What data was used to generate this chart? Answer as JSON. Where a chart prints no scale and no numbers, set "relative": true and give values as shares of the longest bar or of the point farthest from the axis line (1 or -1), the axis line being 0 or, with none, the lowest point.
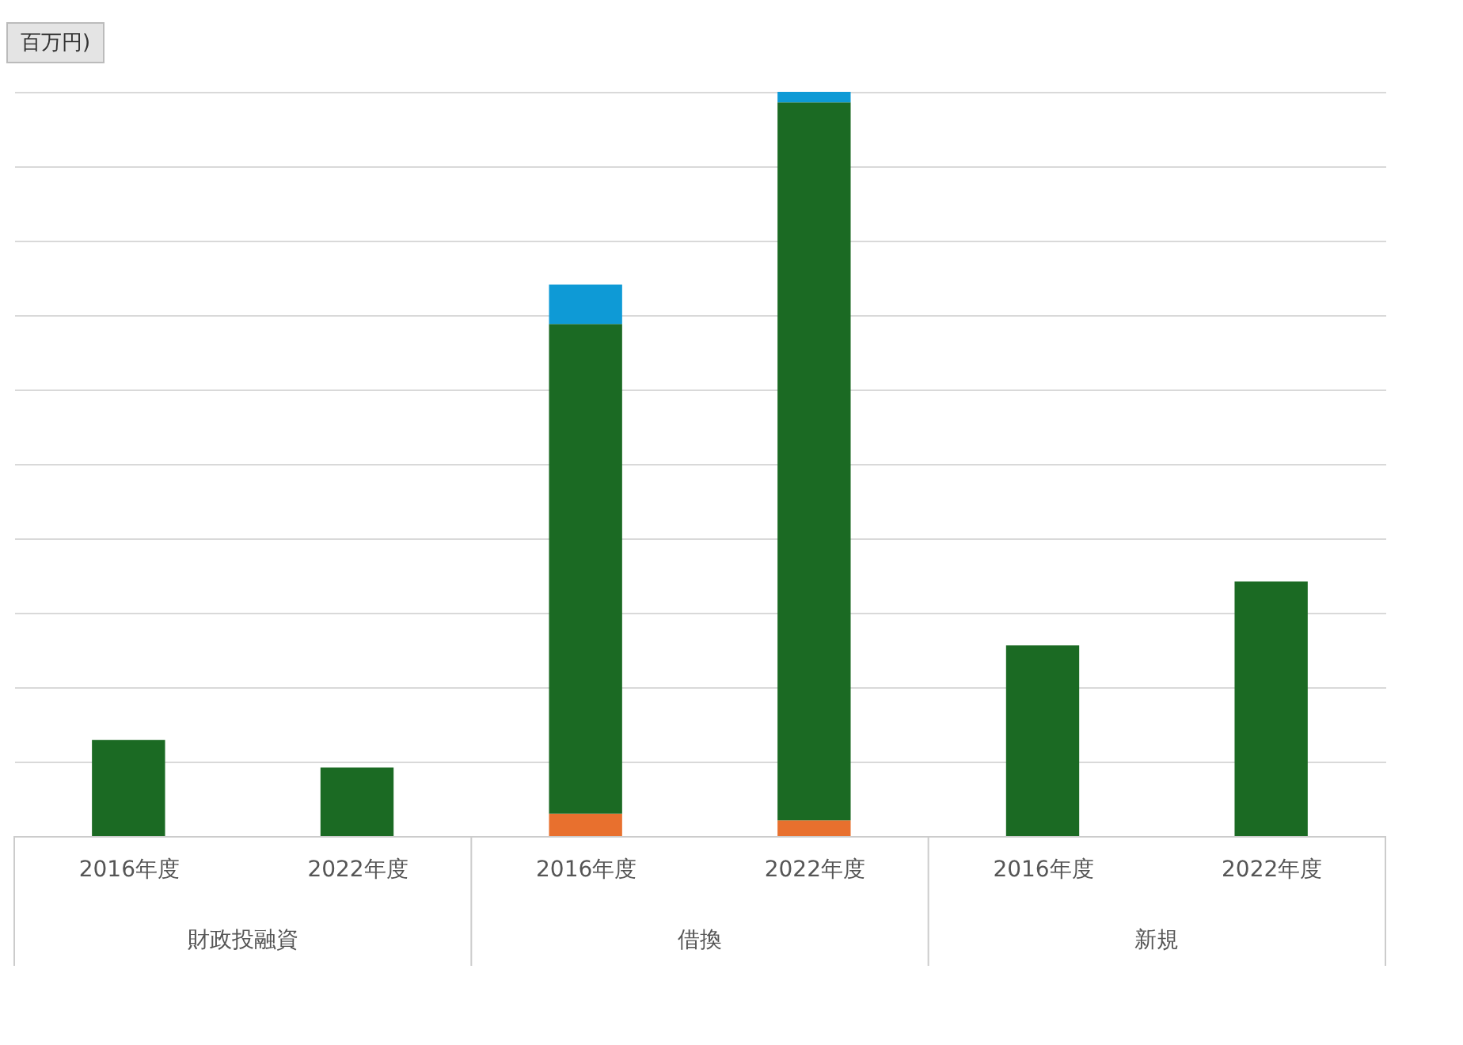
{
  "chart_data": {
    "type": "bar",
    "stacked": true,
    "relative": true,
    "grid": true,
    "ylabel": "百万円)",
    "categories": [
      "2016年度",
      "2022年度",
      "2016年度",
      "2022年度",
      "2016年度",
      "2022年度"
    ],
    "annotations": [
      "財政投融資",
      "借換",
      "新規"
    ],
    "series": [
      {
        "color": "#e8702e",
        "values": [
          null,
          null,
          0.03,
          0.021,
          null,
          null
        ]
      },
      {
        "color": "#1b6a23",
        "values": [
          0.129,
          0.092,
          0.658,
          0.965,
          0.256,
          0.342
        ]
      },
      {
        "color": "#0e9ad6",
        "values": [
          null,
          null,
          0.053,
          0.014,
          null,
          null
        ]
      }
    ]
  }
}
